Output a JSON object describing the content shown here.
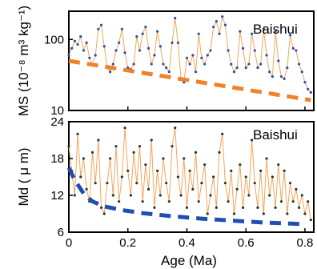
{
  "chart_data": [
    {
      "type": "line",
      "panel_label": "Baishui",
      "xlabel": "Age (Ma)",
      "ylabel": "MS (10⁻⁸ m³ kg⁻¹)",
      "yscale": "log",
      "xlim": [
        0,
        0.83
      ],
      "ylim": [
        10,
        250
      ],
      "x_ticks": [
        0,
        0.2,
        0.4,
        0.6,
        0.8
      ],
      "y_ticks": [
        10,
        100
      ],
      "y_tick_labels": [
        "10",
        "100"
      ],
      "series": [
        {
          "style": "blue points with thin orange line",
          "x": [
            0.0,
            0.01,
            0.02,
            0.03,
            0.04,
            0.05,
            0.06,
            0.07,
            0.08,
            0.09,
            0.1,
            0.11,
            0.12,
            0.13,
            0.14,
            0.15,
            0.16,
            0.17,
            0.18,
            0.19,
            0.2,
            0.21,
            0.22,
            0.23,
            0.24,
            0.25,
            0.26,
            0.27,
            0.28,
            0.29,
            0.3,
            0.31,
            0.32,
            0.33,
            0.34,
            0.35,
            0.36,
            0.37,
            0.38,
            0.39,
            0.4,
            0.41,
            0.42,
            0.43,
            0.44,
            0.45,
            0.46,
            0.47,
            0.48,
            0.49,
            0.5,
            0.51,
            0.52,
            0.53,
            0.54,
            0.55,
            0.56,
            0.57,
            0.58,
            0.59,
            0.6,
            0.61,
            0.62,
            0.63,
            0.64,
            0.65,
            0.66,
            0.67,
            0.68,
            0.69,
            0.7,
            0.71,
            0.72,
            0.73,
            0.74,
            0.75,
            0.76,
            0.77,
            0.78,
            0.79,
            0.8,
            0.81,
            0.82
          ],
          "values": [
            60,
            75,
            95,
            85,
            110,
            70,
            90,
            55,
            45,
            60,
            140,
            160,
            80,
            40,
            35,
            45,
            70,
            90,
            140,
            65,
            40,
            38,
            45,
            110,
            70,
            120,
            150,
            75,
            45,
            60,
            130,
            80,
            45,
            40,
            35,
            90,
            200,
            90,
            28,
            25,
            55,
            45,
            60,
            35,
            120,
            55,
            45,
            60,
            70,
            150,
            180,
            120,
            210,
            160,
            70,
            45,
            35,
            40,
            130,
            75,
            40,
            45,
            120,
            70,
            40,
            45,
            140,
            60,
            35,
            30,
            130,
            50,
            30,
            28,
            40,
            115,
            75,
            70,
            45,
            35,
            25,
            20,
            18
          ]
        },
        {
          "name": "",
          "style": "orange dashed trend",
          "x": [
            0.0,
            0.82
          ],
          "values": [
            50,
            14
          ]
        }
      ]
    },
    {
      "type": "line",
      "panel_label": "Baishui",
      "xlabel": "Age (Ma)",
      "ylabel": "Md ( μ m)",
      "xlim": [
        0,
        0.83
      ],
      "ylim": [
        6,
        24
      ],
      "x_ticks": [
        0,
        0.2,
        0.4,
        0.6,
        0.8
      ],
      "x_tick_labels": [
        "0",
        "0.2",
        "0.4",
        "0.6",
        "0.8"
      ],
      "y_ticks": [
        6,
        12,
        18,
        24
      ],
      "y_tick_labels": [
        "6",
        "12",
        "18",
        "24"
      ],
      "series": [
        {
          "style": "dark green points with thin orange line",
          "x": [
            0.0,
            0.01,
            0.02,
            0.03,
            0.04,
            0.05,
            0.06,
            0.07,
            0.08,
            0.09,
            0.1,
            0.11,
            0.12,
            0.13,
            0.14,
            0.15,
            0.16,
            0.17,
            0.18,
            0.19,
            0.2,
            0.21,
            0.22,
            0.23,
            0.24,
            0.25,
            0.26,
            0.27,
            0.28,
            0.29,
            0.3,
            0.31,
            0.32,
            0.33,
            0.34,
            0.35,
            0.36,
            0.37,
            0.38,
            0.39,
            0.4,
            0.41,
            0.42,
            0.43,
            0.44,
            0.45,
            0.46,
            0.47,
            0.48,
            0.49,
            0.5,
            0.51,
            0.52,
            0.53,
            0.54,
            0.55,
            0.56,
            0.57,
            0.58,
            0.59,
            0.6,
            0.61,
            0.62,
            0.63,
            0.64,
            0.65,
            0.66,
            0.67,
            0.68,
            0.69,
            0.7,
            0.71,
            0.72,
            0.73,
            0.74,
            0.75,
            0.76,
            0.77,
            0.78,
            0.79,
            0.8,
            0.81,
            0.82
          ],
          "values": [
            20,
            16,
            12,
            22,
            15,
            18,
            13,
            11,
            19,
            14,
            21,
            10,
            9,
            14,
            18,
            12,
            20,
            11,
            15,
            23,
            16,
            12,
            19,
            14,
            20,
            11,
            17,
            13,
            21,
            10,
            16,
            12,
            18,
            14,
            11,
            20,
            23,
            15,
            12,
            18,
            10,
            16,
            13,
            19,
            11,
            14,
            17,
            9,
            12,
            15,
            10,
            19,
            22,
            14,
            11,
            16,
            9,
            13,
            17,
            10,
            15,
            12,
            21,
            14,
            10,
            16,
            9,
            18,
            12,
            15,
            10,
            17,
            11,
            16,
            9,
            14,
            11,
            13,
            10,
            12,
            9,
            11,
            8
          ]
        },
        {
          "name": "",
          "style": "blue dashed trend",
          "x": [
            0.0,
            0.02,
            0.05,
            0.08,
            0.12,
            0.18,
            0.25,
            0.35,
            0.45,
            0.55,
            0.65,
            0.75,
            0.8
          ],
          "values": [
            16.5,
            14.5,
            12.3,
            11.0,
            10.2,
            9.6,
            9.1,
            8.6,
            8.2,
            7.9,
            7.6,
            7.4,
            7.3
          ]
        }
      ]
    }
  ],
  "colors": {
    "ms_points": "#2b4fa8",
    "md_points": "#1f3d24",
    "connector": "#f2a65a",
    "trend_orange": "#f0822a",
    "trend_blue": "#1f4fb0",
    "axis": "#000000"
  }
}
